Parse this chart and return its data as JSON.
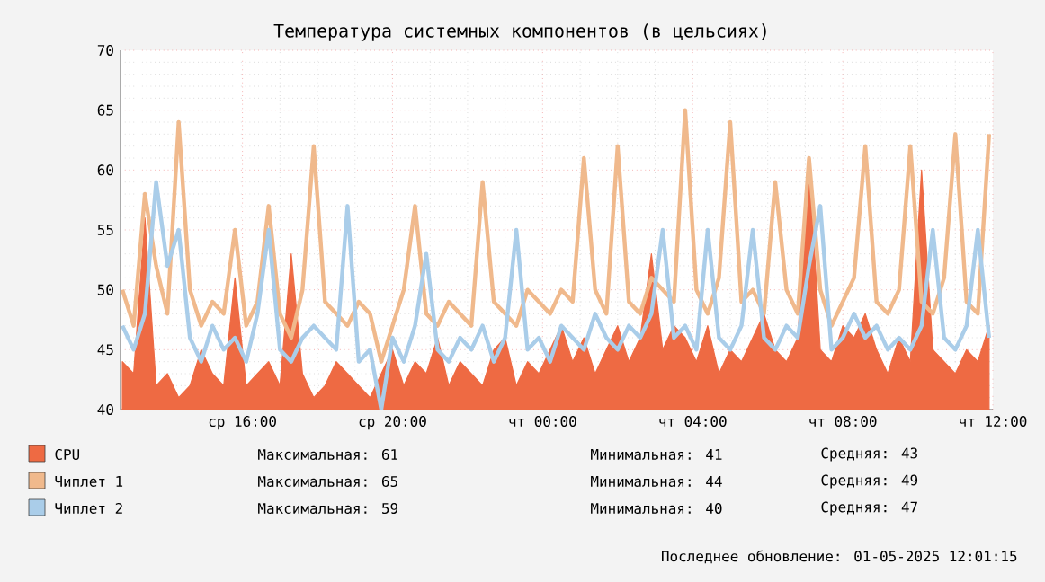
{
  "chart_data": {
    "type": "line",
    "title": "Температура системных компонентов (в цельсиях)",
    "xlim": [
      "2025-04-30T12:45",
      "2025-05-01T12:00"
    ],
    "xticks": [
      {
        "value": "2025-04-30T16:00",
        "label": "ср 16:00"
      },
      {
        "value": "2025-04-30T20:00",
        "label": "ср 20:00"
      },
      {
        "value": "2025-05-01T00:00",
        "label": "чт 00:00"
      },
      {
        "value": "2025-05-01T04:00",
        "label": "чт 04:00"
      },
      {
        "value": "2025-05-01T08:00",
        "label": "чт 08:00"
      },
      {
        "value": "2025-05-01T12:00",
        "label": "чт 12:00"
      }
    ],
    "ylim": [
      40,
      70
    ],
    "yticks": [
      40,
      45,
      50,
      55,
      60,
      65,
      70
    ],
    "grid": true,
    "legend": "bottom",
    "marker": "none",
    "line_style": "solid",
    "x": [
      "2025-04-30T12:48",
      "2025-04-30T13:06",
      "2025-04-30T13:24",
      "2025-04-30T13:42",
      "2025-04-30T14:00",
      "2025-04-30T14:18",
      "2025-04-30T14:36",
      "2025-04-30T14:54",
      "2025-04-30T15:12",
      "2025-04-30T15:30",
      "2025-04-30T15:48",
      "2025-04-30T16:06",
      "2025-04-30T16:24",
      "2025-04-30T16:42",
      "2025-04-30T17:00",
      "2025-04-30T17:18",
      "2025-04-30T17:36",
      "2025-04-30T17:54",
      "2025-04-30T18:12",
      "2025-04-30T18:30",
      "2025-04-30T18:48",
      "2025-04-30T19:06",
      "2025-04-30T19:24",
      "2025-04-30T19:42",
      "2025-04-30T20:00",
      "2025-04-30T20:18",
      "2025-04-30T20:36",
      "2025-04-30T20:54",
      "2025-04-30T21:12",
      "2025-04-30T21:30",
      "2025-04-30T21:48",
      "2025-04-30T22:06",
      "2025-04-30T22:24",
      "2025-04-30T22:42",
      "2025-04-30T23:00",
      "2025-04-30T23:18",
      "2025-04-30T23:36",
      "2025-04-30T23:54",
      "2025-05-01T00:12",
      "2025-05-01T00:30",
      "2025-05-01T00:48",
      "2025-05-01T01:06",
      "2025-05-01T01:24",
      "2025-05-01T01:42",
      "2025-05-01T02:00",
      "2025-05-01T02:18",
      "2025-05-01T02:36",
      "2025-05-01T02:54",
      "2025-05-01T03:12",
      "2025-05-01T03:30",
      "2025-05-01T03:48",
      "2025-05-01T04:06",
      "2025-05-01T04:24",
      "2025-05-01T04:42",
      "2025-05-01T05:00",
      "2025-05-01T05:18",
      "2025-05-01T05:36",
      "2025-05-01T05:54",
      "2025-05-01T06:12",
      "2025-05-01T06:30",
      "2025-05-01T06:48",
      "2025-05-01T07:06",
      "2025-05-01T07:24",
      "2025-05-01T07:42",
      "2025-05-01T08:00",
      "2025-05-01T08:18",
      "2025-05-01T08:36",
      "2025-05-01T08:54",
      "2025-05-01T09:12",
      "2025-05-01T09:30",
      "2025-05-01T09:48",
      "2025-05-01T10:06",
      "2025-05-01T10:24",
      "2025-05-01T10:42",
      "2025-05-01T11:00",
      "2025-05-01T11:18",
      "2025-05-01T11:36",
      "2025-05-01T11:54"
    ],
    "series": [
      {
        "name": "CPU",
        "type": "area",
        "color": "#ee6a43",
        "values": [
          44,
          43,
          56,
          42,
          43,
          41,
          42,
          45,
          43,
          42,
          51,
          42,
          43,
          44,
          42,
          53,
          43,
          41,
          42,
          44,
          43,
          42,
          41,
          43,
          45,
          42,
          44,
          43,
          46,
          42,
          44,
          43,
          42,
          45,
          46,
          42,
          44,
          43,
          45,
          47,
          44,
          46,
          43,
          45,
          47,
          44,
          46,
          53,
          45,
          47,
          46,
          44,
          47,
          43,
          45,
          44,
          46,
          48,
          45,
          44,
          46,
          61,
          45,
          44,
          47,
          46,
          48,
          45,
          43,
          46,
          44,
          60,
          45,
          44,
          43,
          45,
          44,
          47
        ]
      },
      {
        "name": "Чиплет 1",
        "color": "#f0b98c",
        "values": [
          50,
          47,
          58,
          52,
          48,
          64,
          50,
          47,
          49,
          48,
          55,
          47,
          49,
          57,
          48,
          46,
          50,
          62,
          49,
          48,
          47,
          49,
          48,
          44,
          47,
          50,
          57,
          48,
          47,
          49,
          48,
          47,
          59,
          49,
          48,
          47,
          50,
          49,
          48,
          50,
          49,
          61,
          50,
          48,
          62,
          49,
          48,
          51,
          50,
          49,
          65,
          50,
          48,
          51,
          64,
          49,
          50,
          48,
          59,
          50,
          48,
          61,
          50,
          47,
          49,
          51,
          62,
          49,
          48,
          50,
          62,
          49,
          48,
          51,
          63,
          49,
          48,
          63
        ]
      },
      {
        "name": "Чиплет 2",
        "color": "#aacde9",
        "values": [
          47,
          45,
          48,
          59,
          52,
          55,
          46,
          44,
          47,
          45,
          46,
          44,
          48,
          55,
          45,
          44,
          46,
          47,
          46,
          45,
          57,
          44,
          45,
          40,
          46,
          44,
          47,
          53,
          45,
          44,
          46,
          45,
          47,
          44,
          46,
          55,
          45,
          46,
          44,
          47,
          46,
          45,
          48,
          46,
          45,
          47,
          46,
          48,
          55,
          46,
          47,
          45,
          55,
          46,
          45,
          47,
          55,
          46,
          45,
          47,
          46,
          52,
          57,
          45,
          46,
          48,
          46,
          47,
          45,
          46,
          45,
          47,
          55,
          46,
          45,
          47,
          55,
          46
        ]
      }
    ],
    "annotations": [
      "Максимальная: 61",
      "Минимальная: 41",
      "Средняя: 43",
      "Максимальная: 65",
      "Минимальная: 44",
      "Средняя: 49",
      "Максимальная: 59",
      "Минимальная: 40",
      "Средняя: 47",
      "Последнее обновление: 01-05-2025 12:01:15"
    ]
  }
}
